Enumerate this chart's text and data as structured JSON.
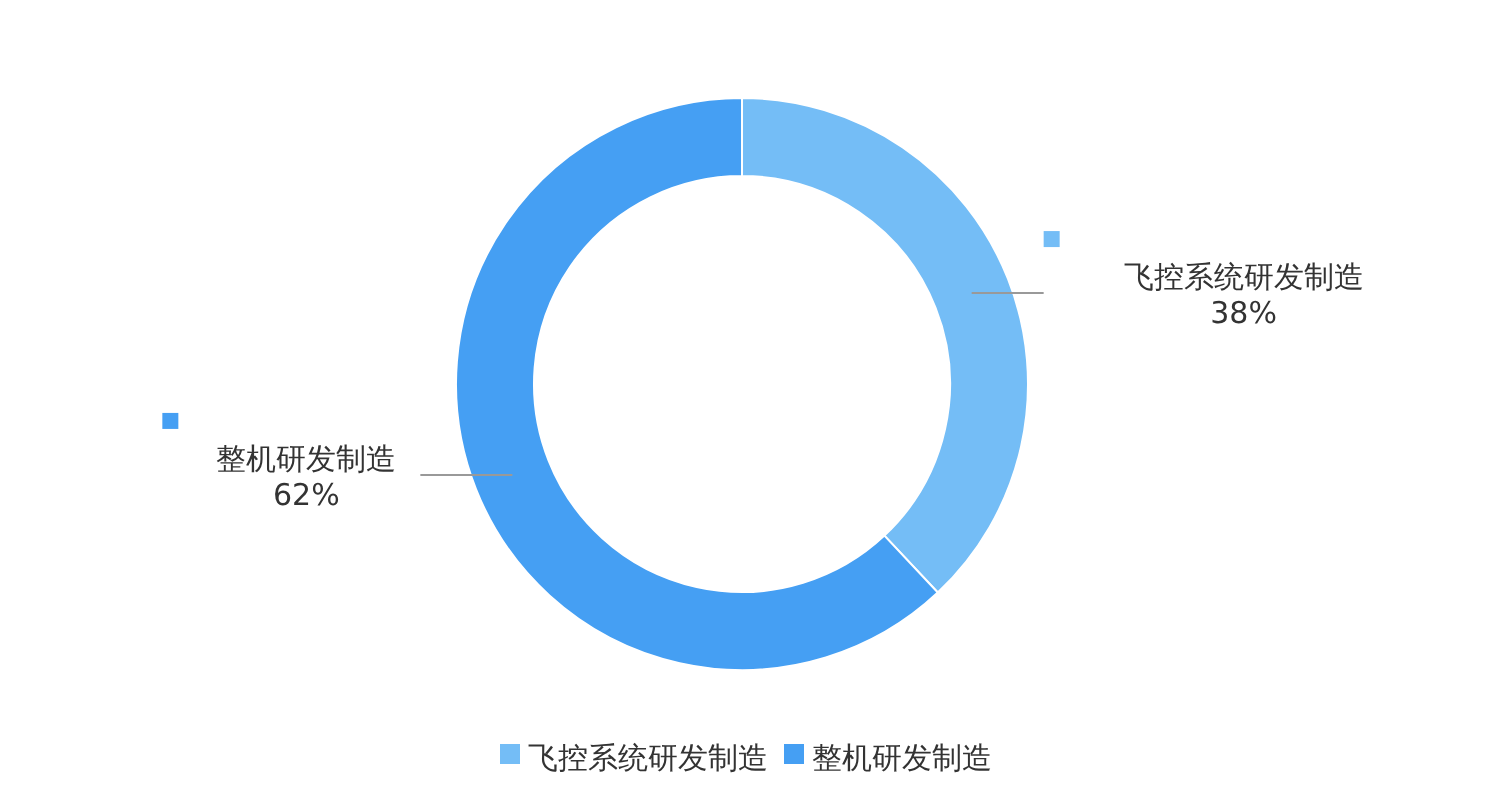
{
  "chart_data": {
    "type": "donut",
    "categories": [
      "飞控系统研发制造",
      "整机研发制造"
    ],
    "values": [
      38,
      62
    ],
    "colors": [
      "#74bdf6",
      "#459ff3"
    ],
    "value_labels": [
      "38%",
      "62%"
    ],
    "legend": "bottom"
  }
}
